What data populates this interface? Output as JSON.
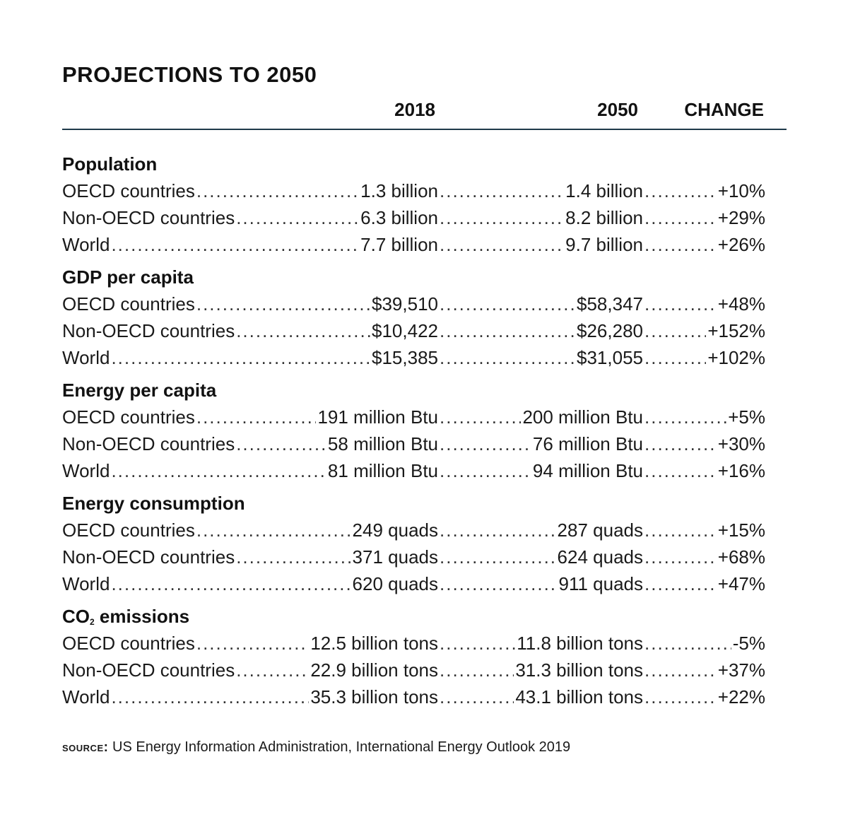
{
  "title": "PROJECTIONS TO 2050",
  "columns": {
    "year1": "2018",
    "year2": "2050",
    "change": "CHANGE"
  },
  "sections": [
    {
      "title": "Population",
      "title_sub": "",
      "title_rest": "",
      "rows": [
        {
          "label": "OECD countries",
          "v2018": "1.3 billion",
          "v2050": "1.4 billion",
          "change": "+10%"
        },
        {
          "label": "Non-OECD countries",
          "v2018": "6.3 billion",
          "v2050": "8.2 billion",
          "change": "+29%"
        },
        {
          "label": "World",
          "v2018": "7.7 billion",
          "v2050": "9.7 billion",
          "change": "+26%"
        }
      ]
    },
    {
      "title": "GDP per capita",
      "title_sub": "",
      "title_rest": "",
      "rows": [
        {
          "label": "OECD countries",
          "v2018": "$39,510",
          "v2050": "$58,347",
          "change": "+48%"
        },
        {
          "label": "Non-OECD countries",
          "v2018": "$10,422",
          "v2050": "$26,280",
          "change": "+152%"
        },
        {
          "label": "World",
          "v2018": "$15,385",
          "v2050": "$31,055",
          "change": "+102%"
        }
      ]
    },
    {
      "title": "Energy per capita",
      "title_sub": "",
      "title_rest": "",
      "rows": [
        {
          "label": "OECD countries",
          "v2018": "191 million Btu",
          "v2050": "200 million Btu",
          "change": "+5%"
        },
        {
          "label": "Non-OECD countries",
          "v2018": "58 million Btu",
          "v2050": "76 million Btu",
          "change": "+30%"
        },
        {
          "label": "World",
          "v2018": "81 million Btu",
          "v2050": "94 million Btu",
          "change": "+16%"
        }
      ]
    },
    {
      "title": "Energy consumption",
      "title_sub": "",
      "title_rest": "",
      "rows": [
        {
          "label": "OECD countries",
          "v2018": "249 quads",
          "v2050": "287 quads",
          "change": "+15%"
        },
        {
          "label": "Non-OECD countries",
          "v2018": "371 quads",
          "v2050": "624 quads",
          "change": "+68%"
        },
        {
          "label": "World",
          "v2018": "620 quads",
          "v2050": "911 quads",
          "change": "+47%"
        }
      ]
    },
    {
      "title": "CO",
      "title_sub": "2",
      "title_rest": " emissions",
      "rows": [
        {
          "label": "OECD countries",
          "v2018": "12.5 billion tons",
          "v2050": "11.8 billion tons",
          "change": "-5%"
        },
        {
          "label": "Non-OECD countries",
          "v2018": "22.9 billion tons",
          "v2050": "31.3 billion tons",
          "change": "+37%"
        },
        {
          "label": "World",
          "v2018": "35.3 billion tons",
          "v2050": "43.1 billion tons",
          "change": "+22%"
        }
      ]
    }
  ],
  "source": {
    "lead": "source:",
    "text": "US Energy Information Administration, International Energy Outlook 2019"
  },
  "colors": {
    "rule": "#1f3a4a",
    "text": "#1a1a1a"
  }
}
